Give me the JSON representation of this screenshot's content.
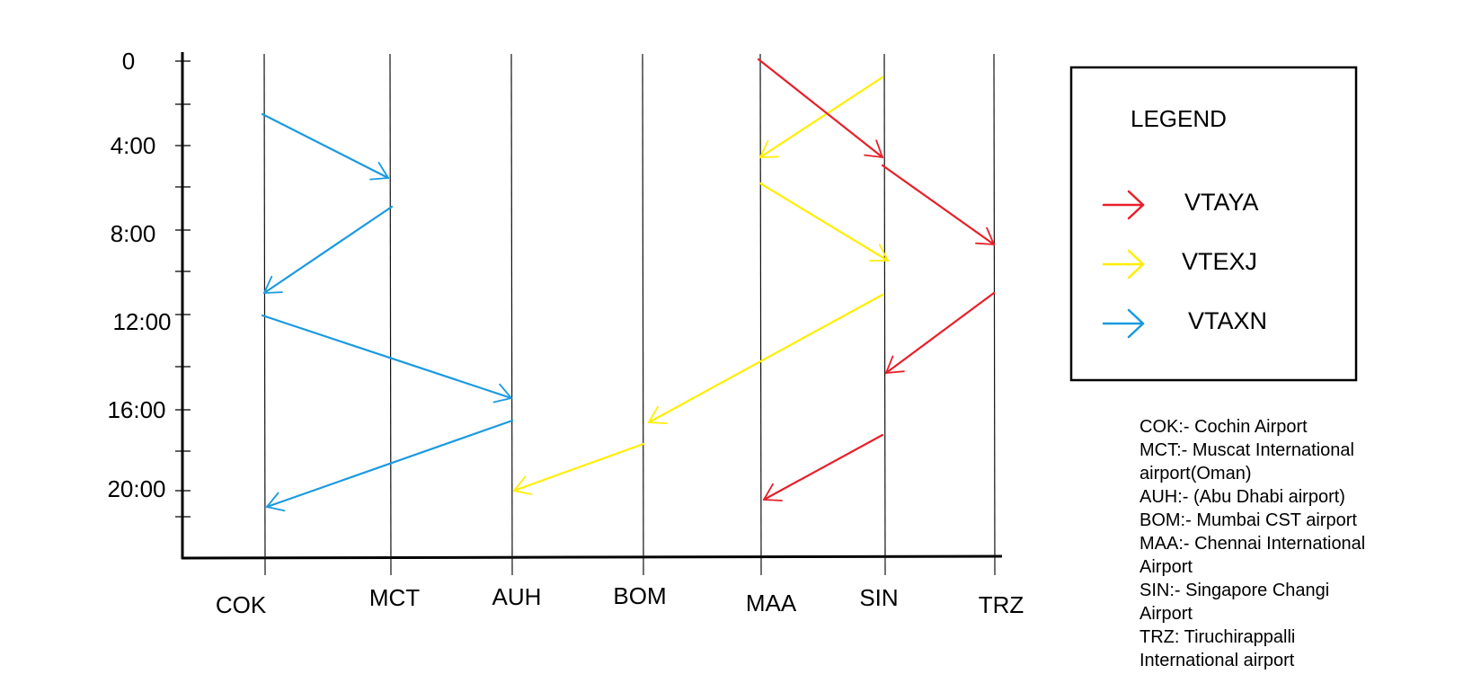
{
  "diagram": {
    "airports": [
      "COK",
      "MCT",
      "AUH",
      "BOM",
      "MAA",
      "SIN",
      "TRZ"
    ],
    "time_ticks": [
      "0",
      "4:00",
      "8:00",
      "12:00",
      "16:00",
      "20:00"
    ],
    "legend": {
      "title": "LEGEND",
      "items": [
        {
          "name": "VTAYA",
          "color": "#e8202a"
        },
        {
          "name": "VTEXJ",
          "color": "#ffee00"
        },
        {
          "name": "VTAXN",
          "color": "#1a9ae0"
        }
      ]
    },
    "flights": [
      {
        "aircraft": "VTAXN",
        "from": "COK",
        "to": "MCT"
      },
      {
        "aircraft": "VTAXN",
        "from": "MCT",
        "to": "COK"
      },
      {
        "aircraft": "VTAXN",
        "from": "COK",
        "to": "AUH"
      },
      {
        "aircraft": "VTAXN",
        "from": "AUH",
        "to": "COK"
      },
      {
        "aircraft": "VTEXJ",
        "from": "SIN",
        "to": "MAA"
      },
      {
        "aircraft": "VTEXJ",
        "from": "MAA",
        "to": "SIN"
      },
      {
        "aircraft": "VTEXJ",
        "from": "SIN",
        "to": "BOM"
      },
      {
        "aircraft": "VTEXJ",
        "from": "BOM",
        "to": "AUH"
      },
      {
        "aircraft": "VTAYA",
        "from": "MAA",
        "to": "SIN"
      },
      {
        "aircraft": "VTAYA",
        "from": "SIN",
        "to": "TRZ"
      },
      {
        "aircraft": "VTAYA",
        "from": "TRZ",
        "to": "SIN"
      },
      {
        "aircraft": "VTAYA",
        "from": "SIN",
        "to": "MAA"
      }
    ],
    "airport_key": [
      "COK:- Cochin Airport",
      "MCT:- Muscat International",
      "airport(Oman)",
      "AUH:- (Abu Dhabi airport)",
      "BOM:- Mumbai CST airport",
      "MAA:- Chennai International",
      "Airport",
      "SIN:- Singapore Changi",
      "Airport",
      "TRZ: Tiruchirappalli",
      "International airport"
    ]
  }
}
